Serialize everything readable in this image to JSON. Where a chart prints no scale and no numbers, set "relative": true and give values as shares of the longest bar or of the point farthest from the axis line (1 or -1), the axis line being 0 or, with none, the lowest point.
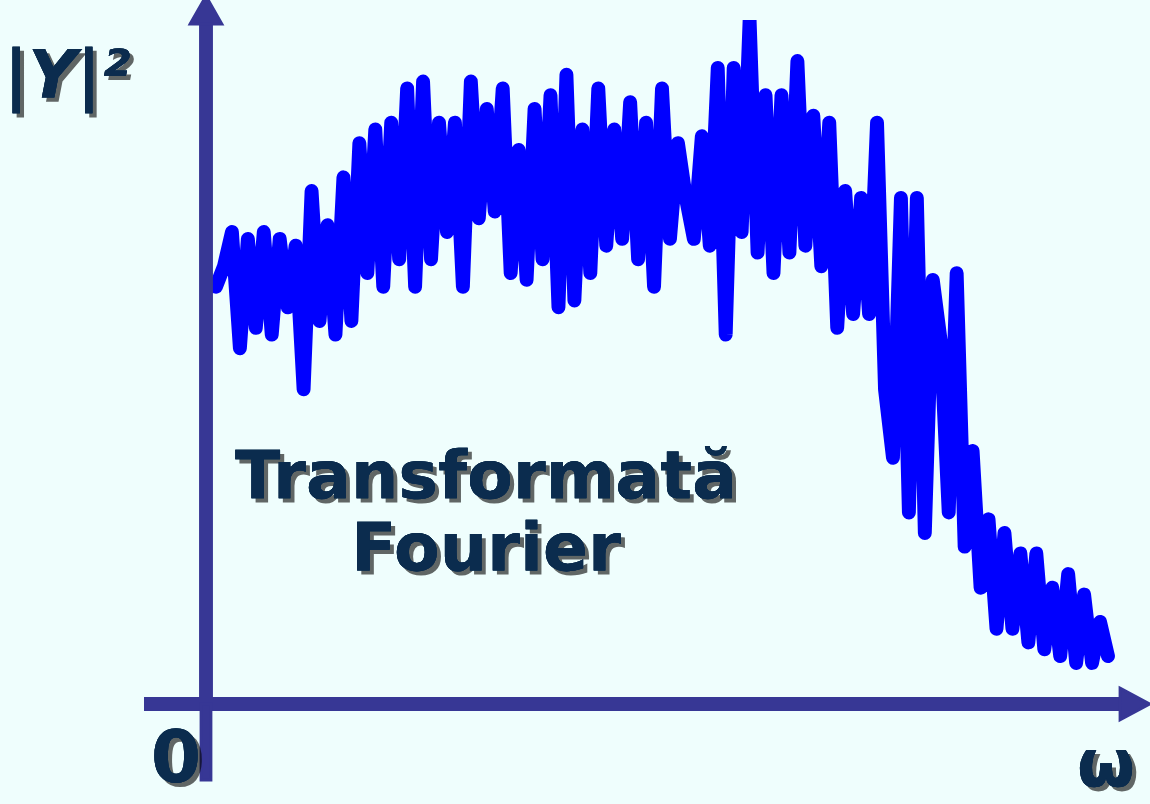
{
  "chart_data": {
    "type": "line",
    "relative": true,
    "ylabel": "|Y|²",
    "xlabel": "ω",
    "color": "#0000ff",
    "annotations": [
      "Transformată\nFourier",
      "0"
    ],
    "categories": [
      null,
      null,
      null,
      null,
      null,
      null,
      null,
      null,
      null,
      null,
      null,
      null,
      null,
      null,
      null,
      null,
      null,
      null,
      null,
      null,
      null,
      null,
      null,
      null,
      null,
      null,
      null,
      null,
      null,
      null,
      null,
      null,
      null,
      null,
      null,
      null,
      null,
      null,
      null,
      null,
      null,
      null,
      null,
      null,
      null,
      null,
      null,
      null,
      null,
      null,
      null,
      null,
      null,
      null,
      null,
      null,
      null,
      null,
      null,
      null,
      null,
      null,
      null,
      null,
      null,
      null,
      null,
      null,
      null,
      null,
      null,
      null,
      null,
      null,
      null,
      null,
      null,
      null,
      null,
      null,
      null,
      null,
      null,
      null,
      null,
      null,
      null,
      null,
      null,
      null,
      null,
      null,
      null,
      null,
      null,
      null,
      null,
      null,
      null,
      null,
      null,
      null,
      null,
      null,
      null,
      null,
      null,
      null,
      null,
      null,
      null,
      null,
      null
    ],
    "values": [
      0.61,
      0.64,
      0.69,
      0.52,
      0.68,
      0.55,
      0.69,
      0.54,
      0.68,
      0.58,
      0.67,
      0.46,
      0.75,
      0.56,
      0.7,
      0.54,
      0.77,
      0.56,
      0.82,
      0.63,
      0.84,
      0.61,
      0.85,
      0.65,
      0.9,
      0.61,
      0.91,
      0.65,
      0.85,
      0.69,
      0.85,
      0.61,
      0.91,
      0.71,
      0.87,
      0.72,
      0.9,
      0.63,
      0.81,
      0.62,
      0.87,
      0.65,
      0.89,
      0.58,
      0.92,
      0.59,
      0.84,
      0.63,
      0.9,
      0.67,
      0.84,
      0.68,
      0.88,
      0.65,
      0.85,
      0.61,
      0.9,
      0.68,
      0.82,
      0.74,
      0.68,
      0.83,
      0.67,
      0.93,
      0.54,
      0.93,
      0.69,
      1.0,
      0.66,
      0.89,
      0.63,
      0.89,
      0.66,
      0.94,
      0.67,
      0.86,
      0.64,
      0.85,
      0.55,
      0.75,
      0.57,
      0.74,
      0.57,
      0.85,
      0.46,
      0.36,
      0.74,
      0.28,
      0.74,
      0.25,
      0.62,
      0.53,
      0.28,
      0.63,
      0.23,
      0.37,
      0.17,
      0.27,
      0.11,
      0.25,
      0.11,
      0.22,
      0.09,
      0.22,
      0.08,
      0.17,
      0.07,
      0.19,
      0.06,
      0.16,
      0.06,
      0.12,
      0.07
    ]
  }
}
